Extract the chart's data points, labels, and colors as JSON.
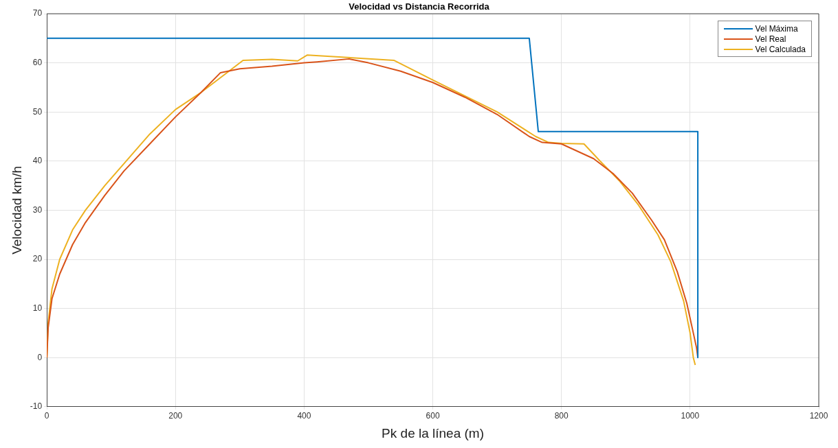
{
  "chart_data": {
    "type": "line",
    "title": "Velocidad vs Distancia Recorrida",
    "xlabel": "Pk de la línea (m)",
    "ylabel": "Velocidad km/h",
    "xlim": [
      0,
      1200
    ],
    "xticks": [
      0,
      200,
      400,
      600,
      800,
      1000,
      1200
    ],
    "ylim": [
      -10,
      70
    ],
    "yticks": [
      -10,
      0,
      10,
      20,
      30,
      40,
      50,
      60,
      70
    ],
    "grid": true,
    "legend": "top right",
    "marker": "none",
    "line_style": "solid",
    "series": [
      {
        "name": "Vel Máxima",
        "color": "#0072bd",
        "x": [
          0,
          750,
          764,
          1012,
          1012
        ],
        "values": [
          65,
          65,
          46,
          46,
          0
        ]
      },
      {
        "name": "Vel Real",
        "color": "#d95319",
        "x": [
          0,
          2,
          8,
          20,
          40,
          60,
          90,
          120,
          160,
          200,
          240,
          270,
          300,
          350,
          400,
          420,
          470,
          500,
          550,
          600,
          650,
          700,
          750,
          770,
          800,
          850,
          880,
          910,
          940,
          960,
          980,
          995,
          1005,
          1010,
          1012
        ],
        "values": [
          0,
          6,
          12,
          17,
          23,
          27.5,
          33,
          38,
          43.5,
          49,
          54,
          58,
          58.8,
          59.3,
          60,
          60.2,
          60.8,
          60,
          58.3,
          56,
          53,
          49.5,
          45,
          43.8,
          43.5,
          40.5,
          37.5,
          33.5,
          28,
          24,
          17.5,
          11,
          5,
          2,
          0
        ]
      },
      {
        "name": "Vel Calculada",
        "color": "#edb120",
        "x": [
          0,
          2,
          8,
          20,
          40,
          60,
          90,
          120,
          160,
          200,
          240,
          280,
          305,
          350,
          390,
          405,
          540,
          600,
          700,
          760,
          780,
          800,
          835,
          860,
          890,
          920,
          950,
          970,
          990,
          1000,
          1005,
          1008
        ],
        "values": [
          0,
          7,
          14,
          20,
          26,
          30,
          35,
          39.5,
          45.5,
          50.5,
          54,
          58,
          60.5,
          60.7,
          60.4,
          61.6,
          60.5,
          56.5,
          50,
          45,
          43.8,
          43.6,
          43.5,
          40,
          36,
          31,
          25,
          19.5,
          11.5,
          5,
          0,
          -1.5
        ]
      }
    ]
  }
}
